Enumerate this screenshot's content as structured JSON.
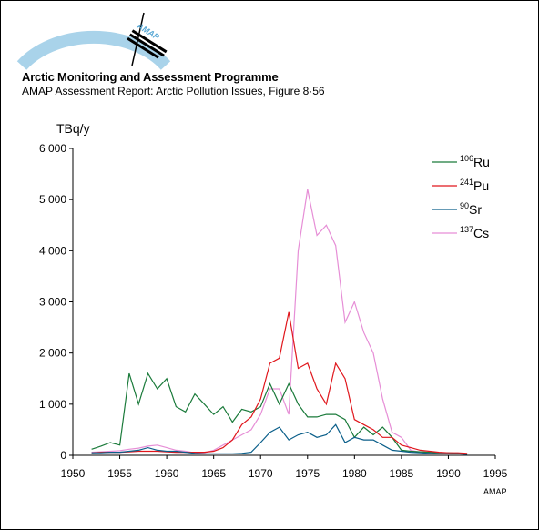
{
  "header": {
    "logo_text": "AMAP",
    "title": "Arctic Monitoring and Assessment Programme",
    "subtitle": "AMAP Assessment Report: Arctic Pollution Issues, Figure 8·56",
    "credit": "AMAP"
  },
  "chart_data": {
    "type": "line",
    "ylabel": "TBq/y",
    "xlim": [
      1950,
      1995
    ],
    "ylim": [
      0,
      6000
    ],
    "x_ticks": [
      1950,
      1955,
      1960,
      1965,
      1970,
      1975,
      1980,
      1985,
      1990,
      1995
    ],
    "y_ticks": [
      0,
      1000,
      2000,
      3000,
      4000,
      5000,
      6000
    ],
    "x_tick_labels": [
      "1950",
      "1955",
      "1960",
      "1965",
      "1970",
      "1975",
      "1980",
      "1985",
      "1990",
      "1995"
    ],
    "y_tick_labels": [
      "0",
      "1 000",
      "2 000",
      "3 000",
      "4 000",
      "5 000",
      "6 000"
    ],
    "legend_position": "top-right",
    "series": [
      {
        "name": "106Ru",
        "mass": "106",
        "element": "Ru",
        "color": "#1a7a3a",
        "x": [
          1952,
          1953,
          1954,
          1955,
          1956,
          1957,
          1958,
          1959,
          1960,
          1961,
          1962,
          1963,
          1964,
          1965,
          1966,
          1967,
          1968,
          1969,
          1970,
          1971,
          1972,
          1973,
          1974,
          1975,
          1976,
          1977,
          1978,
          1979,
          1980,
          1981,
          1982,
          1983,
          1984,
          1985,
          1986,
          1987,
          1988,
          1989,
          1990,
          1991,
          1992
        ],
        "y": [
          120,
          180,
          250,
          200,
          1600,
          1000,
          1600,
          1300,
          1500,
          950,
          850,
          1200,
          1000,
          800,
          950,
          650,
          900,
          850,
          950,
          1400,
          1000,
          1400,
          1000,
          750,
          750,
          800,
          800,
          700,
          350,
          550,
          400,
          550,
          350,
          100,
          80,
          70,
          60,
          50,
          50,
          40,
          30
        ]
      },
      {
        "name": "241Pu",
        "mass": "241",
        "element": "Pu",
        "color": "#e0161c",
        "x": [
          1952,
          1953,
          1954,
          1955,
          1956,
          1957,
          1958,
          1959,
          1960,
          1961,
          1962,
          1963,
          1964,
          1965,
          1966,
          1967,
          1968,
          1969,
          1970,
          1971,
          1972,
          1973,
          1974,
          1975,
          1976,
          1977,
          1978,
          1979,
          1980,
          1981,
          1982,
          1983,
          1984,
          1985,
          1986,
          1987,
          1988,
          1989,
          1990,
          1991,
          1992
        ],
        "y": [
          50,
          60,
          60,
          60,
          70,
          80,
          80,
          80,
          70,
          60,
          60,
          60,
          60,
          80,
          150,
          300,
          600,
          750,
          1100,
          1800,
          1900,
          2800,
          1700,
          1800,
          1300,
          1000,
          1800,
          1500,
          700,
          600,
          500,
          350,
          350,
          200,
          150,
          100,
          80,
          60,
          50,
          50,
          40
        ]
      },
      {
        "name": "90Sr",
        "mass": "90",
        "element": "Sr",
        "color": "#0b5f8a",
        "x": [
          1952,
          1953,
          1954,
          1955,
          1956,
          1957,
          1958,
          1959,
          1960,
          1961,
          1962,
          1963,
          1964,
          1965,
          1966,
          1967,
          1968,
          1969,
          1970,
          1971,
          1972,
          1973,
          1974,
          1975,
          1976,
          1977,
          1978,
          1979,
          1980,
          1981,
          1982,
          1983,
          1984,
          1985,
          1986,
          1987,
          1988,
          1989,
          1990,
          1991,
          1992
        ],
        "y": [
          50,
          50,
          60,
          60,
          80,
          100,
          150,
          100,
          80,
          80,
          60,
          40,
          30,
          30,
          30,
          30,
          40,
          60,
          250,
          450,
          550,
          300,
          400,
          450,
          350,
          400,
          600,
          250,
          350,
          300,
          300,
          200,
          100,
          80,
          60,
          50,
          40,
          30,
          30,
          30,
          20
        ]
      },
      {
        "name": "137Cs",
        "mass": "137",
        "element": "Cs",
        "color": "#e68ed6",
        "x": [
          1952,
          1953,
          1954,
          1955,
          1956,
          1957,
          1958,
          1959,
          1960,
          1961,
          1962,
          1963,
          1964,
          1965,
          1966,
          1967,
          1968,
          1969,
          1970,
          1971,
          1972,
          1973,
          1974,
          1975,
          1976,
          1977,
          1978,
          1979,
          1980,
          1981,
          1982,
          1983,
          1984,
          1985,
          1986,
          1987,
          1988,
          1989,
          1990,
          1991,
          1992
        ],
        "y": [
          60,
          70,
          80,
          90,
          120,
          140,
          180,
          200,
          150,
          100,
          80,
          50,
          50,
          100,
          200,
          300,
          400,
          500,
          800,
          1300,
          1300,
          800,
          4000,
          5200,
          4300,
          4500,
          4100,
          2600,
          3000,
          2400,
          2000,
          1100,
          450,
          350,
          100,
          60,
          50,
          40,
          30,
          30,
          20
        ]
      }
    ]
  }
}
